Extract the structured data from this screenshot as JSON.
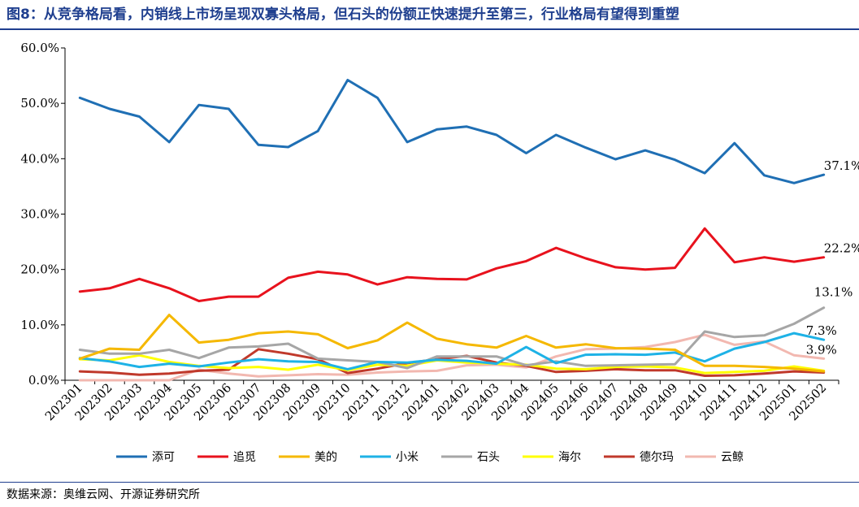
{
  "title": "图8：从竞争格局看，内销线上市场呈现双寡头格局，但石头的份额正快速提升至第三，行业格局有望得到重塑",
  "source": "数据来源：奥维云网、开源证券研究所",
  "chart_data": {
    "type": "line",
    "ylim": [
      0,
      60
    ],
    "yticks": [
      "0.0%",
      "10.0%",
      "20.0%",
      "30.0%",
      "40.0%",
      "50.0%",
      "60.0%"
    ],
    "grid": false,
    "legend_position": "bottom",
    "x": [
      "202301",
      "202302",
      "202303",
      "202304",
      "202305",
      "202306",
      "202307",
      "202308",
      "202309",
      "202310",
      "202311",
      "202312",
      "202401",
      "202402",
      "202403",
      "202404",
      "202405",
      "202406",
      "202407",
      "202408",
      "202409",
      "202410",
      "202411",
      "202412",
      "202501",
      "202502"
    ],
    "series": [
      {
        "name": "添可",
        "color": "#1f6fb4",
        "values": [
          51.0,
          49.0,
          47.6,
          43.0,
          49.7,
          49.0,
          42.5,
          42.1,
          45.0,
          54.2,
          51.0,
          43.0,
          45.3,
          45.8,
          44.3,
          41.0,
          44.3,
          42.0,
          39.9,
          41.5,
          39.8,
          37.4,
          42.8,
          37.0,
          35.6,
          37.1
        ],
        "end_label": "37.1%"
      },
      {
        "name": "追觅",
        "color": "#e8121d",
        "values": [
          16.0,
          16.6,
          18.3,
          16.6,
          14.3,
          15.1,
          15.1,
          18.5,
          19.6,
          19.1,
          17.3,
          18.6,
          18.3,
          18.2,
          20.2,
          21.5,
          23.9,
          22.0,
          20.4,
          20.0,
          20.3,
          27.4,
          21.3,
          22.2,
          21.4,
          22.2
        ],
        "end_label": "22.2%"
      },
      {
        "name": "美的",
        "color": "#f5b800",
        "values": [
          3.9,
          5.7,
          5.5,
          11.8,
          6.8,
          7.3,
          8.5,
          8.8,
          8.3,
          5.8,
          7.2,
          10.4,
          7.5,
          6.5,
          5.9,
          8.0,
          5.9,
          6.5,
          5.8,
          5.7,
          5.5,
          2.6,
          2.6,
          2.4,
          2.1,
          1.6
        ]
      },
      {
        "name": "小米",
        "color": "#1eb2e6",
        "values": [
          4.0,
          3.4,
          2.4,
          3.0,
          2.5,
          3.2,
          3.8,
          3.4,
          3.3,
          2.0,
          3.3,
          3.2,
          3.7,
          3.5,
          3.0,
          6.0,
          3.1,
          4.6,
          4.7,
          4.6,
          5.0,
          3.4,
          5.7,
          6.9,
          8.5,
          7.3
        ],
        "end_label": "7.3%"
      },
      {
        "name": "石头",
        "color": "#a6a6a6",
        "values": [
          5.5,
          4.8,
          4.8,
          5.5,
          4.0,
          5.9,
          6.1,
          6.6,
          3.9,
          3.6,
          3.3,
          2.2,
          4.3,
          4.3,
          4.3,
          2.7,
          3.4,
          2.6,
          2.7,
          2.8,
          2.9,
          8.8,
          7.8,
          8.1,
          10.2,
          13.1
        ],
        "end_label": "13.1%"
      },
      {
        "name": "海尔",
        "color": "#ffff00",
        "values": [
          3.8,
          3.6,
          4.5,
          3.3,
          2.6,
          2.2,
          2.4,
          1.9,
          2.8,
          1.8,
          2.8,
          2.6,
          3.6,
          3.2,
          3.0,
          2.8,
          2.1,
          2.0,
          2.4,
          2.5,
          2.3,
          1.3,
          1.5,
          1.7,
          2.5,
          1.7
        ]
      },
      {
        "name": "德尔玛",
        "color": "#c0392b",
        "values": [
          1.6,
          1.4,
          1.0,
          1.2,
          1.7,
          1.9,
          5.6,
          4.8,
          3.8,
          1.3,
          2.1,
          3.1,
          3.8,
          4.4,
          3.2,
          2.6,
          1.5,
          1.7,
          2.0,
          1.8,
          1.8,
          0.8,
          0.9,
          1.2,
          1.6,
          1.4
        ]
      },
      {
        "name": "云鲸",
        "color": "#f2b8b0",
        "values": [
          0.0,
          0.0,
          0.0,
          0.0,
          1.9,
          1.2,
          0.7,
          0.9,
          1.1,
          1.0,
          1.4,
          1.6,
          1.7,
          2.7,
          2.8,
          2.3,
          4.3,
          5.6,
          5.7,
          6.0,
          6.9,
          8.2,
          6.4,
          7.0,
          4.5,
          3.9
        ],
        "end_label": "3.9%"
      }
    ]
  }
}
